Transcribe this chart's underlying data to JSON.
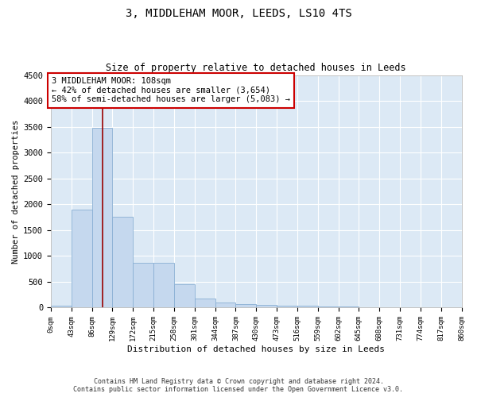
{
  "title1": "3, MIDDLEHAM MOOR, LEEDS, LS10 4TS",
  "title2": "Size of property relative to detached houses in Leeds",
  "xlabel": "Distribution of detached houses by size in Leeds",
  "ylabel": "Number of detached properties",
  "bar_color": "#c5d8ee",
  "bar_edge_color": "#8ab0d4",
  "bg_color": "#dce9f5",
  "grid_color": "#ffffff",
  "property_size": 108,
  "property_line_color": "#990000",
  "annotation_text": "3 MIDDLEHAM MOOR: 108sqm\n← 42% of detached houses are smaller (3,654)\n58% of semi-detached houses are larger (5,083) →",
  "annotation_box_color": "#ffffff",
  "annotation_box_edge": "#cc0000",
  "bin_edges": [
    0,
    43,
    86,
    129,
    172,
    215,
    258,
    301,
    344,
    387,
    430,
    473,
    516,
    559,
    602,
    645,
    688,
    731,
    774,
    817,
    860
  ],
  "bar_heights": [
    40,
    1900,
    3480,
    1760,
    860,
    860,
    450,
    180,
    100,
    70,
    55,
    45,
    35,
    25,
    18,
    12,
    8,
    6,
    4,
    4
  ],
  "ylim": [
    0,
    4500
  ],
  "yticks": [
    0,
    500,
    1000,
    1500,
    2000,
    2500,
    3000,
    3500,
    4000,
    4500
  ],
  "footer1": "Contains HM Land Registry data © Crown copyright and database right 2024.",
  "footer2": "Contains public sector information licensed under the Open Government Licence v3.0."
}
